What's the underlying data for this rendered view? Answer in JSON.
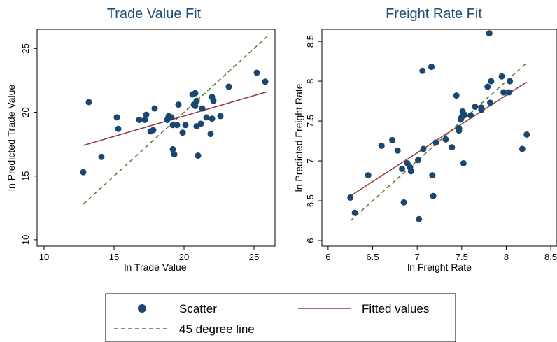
{
  "colors": {
    "scatter": "#1a476f",
    "fitted": "#90353b",
    "degree45": "#55752f",
    "title": "#1f4e79"
  },
  "legend": {
    "items": [
      {
        "label": "Scatter",
        "kind": "marker",
        "color_key": "scatter"
      },
      {
        "label": "Fitted values",
        "kind": "solid",
        "color_key": "fitted"
      },
      {
        "label": "45 degree line",
        "kind": "dashed",
        "color_key": "degree45"
      }
    ]
  },
  "chart_data": [
    {
      "type": "scatter",
      "title": "Trade Value Fit",
      "xlabel": "ln Trade Value",
      "ylabel": "ln Predicted Trade Value",
      "xlim": [
        9.5,
        26.5
      ],
      "ylim": [
        9.5,
        26.5
      ],
      "xticks": [
        10,
        15,
        20,
        25
      ],
      "yticks": [
        10,
        15,
        20,
        25
      ],
      "grid": false,
      "points": [
        [
          12.8,
          15.3
        ],
        [
          13.2,
          20.8
        ],
        [
          14.1,
          16.5
        ],
        [
          15.2,
          19.6
        ],
        [
          15.3,
          18.7
        ],
        [
          16.8,
          19.4
        ],
        [
          17.2,
          19.4
        ],
        [
          17.3,
          19.8
        ],
        [
          17.6,
          18.5
        ],
        [
          17.8,
          18.6
        ],
        [
          17.9,
          20.3
        ],
        [
          18.8,
          19.4
        ],
        [
          18.9,
          19.7
        ],
        [
          19.1,
          19.6
        ],
        [
          19.2,
          19.0
        ],
        [
          19.2,
          17.1
        ],
        [
          19.3,
          16.7
        ],
        [
          19.5,
          19.0
        ],
        [
          19.6,
          20.6
        ],
        [
          19.9,
          18.4
        ],
        [
          20.1,
          19.0
        ],
        [
          20.6,
          21.4
        ],
        [
          20.7,
          20.6
        ],
        [
          20.8,
          21.5
        ],
        [
          20.8,
          20.5
        ],
        [
          20.9,
          18.9
        ],
        [
          20.9,
          20.9
        ],
        [
          21.0,
          16.6
        ],
        [
          21.2,
          19.1
        ],
        [
          21.3,
          20.3
        ],
        [
          21.6,
          19.6
        ],
        [
          21.9,
          18.3
        ],
        [
          22.0,
          19.5
        ],
        [
          22.0,
          21.2
        ],
        [
          22.1,
          20.9
        ],
        [
          22.6,
          19.7
        ],
        [
          23.2,
          22.0
        ],
        [
          25.2,
          23.1
        ],
        [
          25.8,
          22.4
        ]
      ],
      "fitted": [
        [
          12.8,
          17.4
        ],
        [
          25.9,
          21.6
        ]
      ],
      "degree45": [
        [
          12.8,
          12.8
        ],
        [
          25.9,
          25.9
        ]
      ]
    },
    {
      "type": "scatter",
      "title": "Freight Rate Fit",
      "xlabel": "ln Freight Rate",
      "ylabel": "ln Predicted Freight Rate",
      "xlim": [
        5.93,
        8.57
      ],
      "ylim": [
        5.93,
        8.65
      ],
      "xticks": [
        6,
        6.5,
        7,
        7.5,
        8,
        8.5
      ],
      "yticks": [
        6,
        6.5,
        7,
        7.5,
        8,
        8.5
      ],
      "grid": false,
      "points": [
        [
          6.25,
          6.54
        ],
        [
          6.3,
          6.35
        ],
        [
          6.45,
          6.82
        ],
        [
          6.6,
          7.19
        ],
        [
          6.72,
          7.26
        ],
        [
          6.78,
          7.13
        ],
        [
          6.83,
          6.9
        ],
        [
          6.85,
          6.48
        ],
        [
          6.89,
          6.97
        ],
        [
          6.92,
          6.92
        ],
        [
          6.93,
          6.87
        ],
        [
          7.01,
          7.01
        ],
        [
          7.02,
          6.27
        ],
        [
          7.06,
          8.13
        ],
        [
          7.07,
          7.15
        ],
        [
          7.16,
          8.18
        ],
        [
          7.17,
          6.82
        ],
        [
          7.18,
          6.56
        ],
        [
          7.21,
          7.23
        ],
        [
          7.32,
          7.27
        ],
        [
          7.39,
          7.17
        ],
        [
          7.44,
          7.82
        ],
        [
          7.47,
          7.38
        ],
        [
          7.47,
          7.41
        ],
        [
          7.49,
          7.52
        ],
        [
          7.5,
          7.55
        ],
        [
          7.51,
          7.62
        ],
        [
          7.52,
          6.97
        ],
        [
          7.53,
          7.58
        ],
        [
          7.6,
          7.57
        ],
        [
          7.65,
          7.68
        ],
        [
          7.72,
          7.64
        ],
        [
          7.72,
          7.67
        ],
        [
          7.79,
          7.93
        ],
        [
          7.81,
          8.6
        ],
        [
          7.82,
          7.73
        ],
        [
          7.83,
          8.0
        ],
        [
          7.95,
          8.06
        ],
        [
          7.97,
          7.86
        ],
        [
          8.03,
          7.86
        ],
        [
          8.04,
          8.0
        ],
        [
          8.18,
          7.15
        ],
        [
          8.23,
          7.33
        ]
      ],
      "fitted": [
        [
          6.25,
          6.56
        ],
        [
          8.23,
          7.99
        ]
      ],
      "degree45": [
        [
          6.25,
          6.25
        ],
        [
          8.23,
          8.23
        ]
      ]
    }
  ]
}
